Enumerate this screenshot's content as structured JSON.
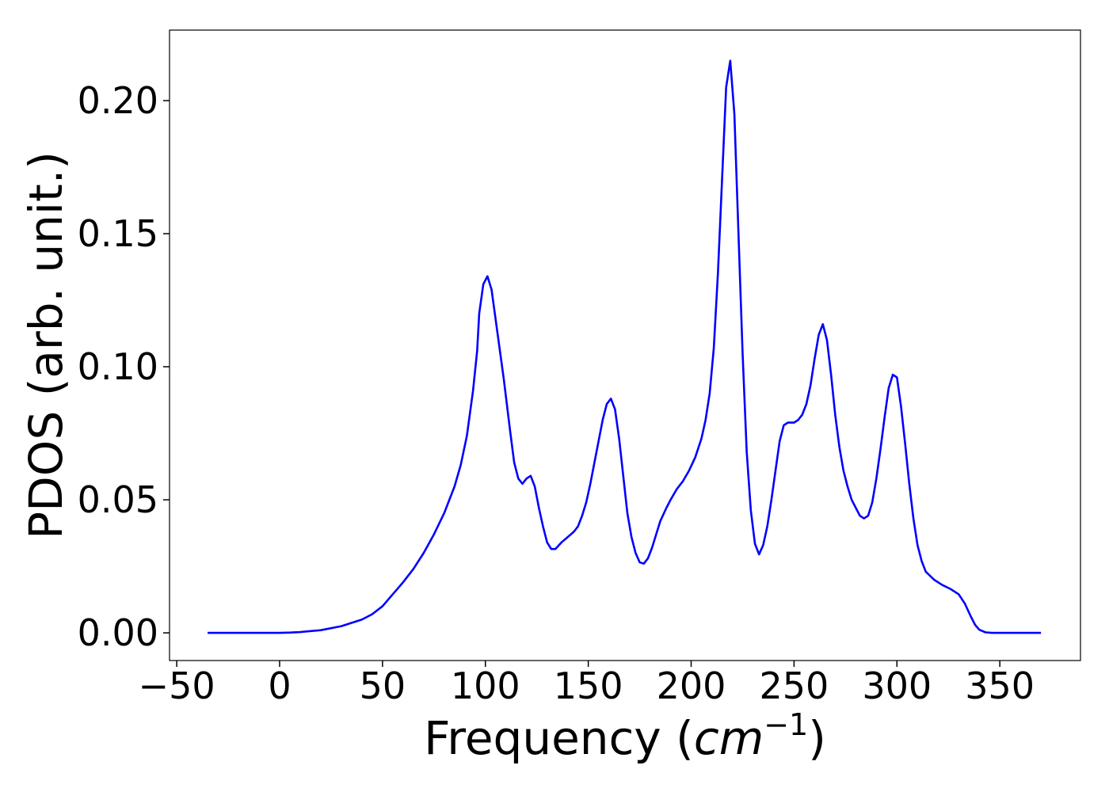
{
  "chart_data": {
    "type": "line",
    "xlabel": [
      "Frequency (",
      "cm",
      "−1",
      ")"
    ],
    "ylabel": "PDOS (arb. unit.)",
    "xlim": [
      -53.5,
      389.2
    ],
    "ylim": [
      -0.0104,
      0.2265
    ],
    "xticks": [
      {
        "value": -50,
        "label": "−50"
      },
      0,
      50,
      100,
      150,
      200,
      250,
      300,
      350
    ],
    "yticks": [
      {
        "value": 0,
        "label": "0.00"
      },
      {
        "value": 0.05,
        "label": "0.05"
      },
      {
        "value": 0.1,
        "label": "0.10"
      },
      {
        "value": 0.15,
        "label": "0.15"
      },
      {
        "value": 0.2,
        "label": "0.20"
      }
    ],
    "grid": false,
    "series": [
      {
        "color": "#0000ff",
        "x": [
          -35,
          0,
          5,
          10,
          20,
          30,
          40,
          45,
          50,
          55,
          60,
          65,
          70,
          75,
          80,
          85,
          88,
          91,
          94,
          96,
          97,
          99,
          101,
          103,
          106,
          109,
          112,
          114,
          116,
          118,
          120,
          122,
          124,
          126,
          128,
          130,
          132,
          134,
          137,
          140,
          143,
          145,
          147,
          149,
          151,
          153,
          155,
          157,
          159,
          161,
          163,
          165,
          167,
          169,
          171,
          173,
          175,
          177,
          179,
          181,
          183,
          185,
          188,
          190,
          193,
          196,
          199,
          202,
          205,
          207,
          209,
          211,
          213,
          215,
          217,
          219,
          221,
          223,
          225,
          227,
          229,
          231,
          233,
          235,
          237,
          239,
          241,
          243,
          245,
          247,
          250,
          252,
          254,
          256,
          258,
          260,
          262,
          264,
          266,
          268,
          270,
          272,
          274,
          276,
          278,
          280,
          282,
          284,
          286,
          288,
          290,
          292,
          294,
          296,
          298,
          300,
          302,
          304,
          306,
          308,
          310,
          312,
          314,
          318,
          322,
          326,
          330,
          333,
          336,
          338,
          340,
          343,
          346,
          370
        ],
        "values": [
          0,
          0,
          0.0001,
          0.0003,
          0.001,
          0.0025,
          0.005,
          0.007,
          0.01,
          0.0145,
          0.019,
          0.024,
          0.03,
          0.037,
          0.045,
          0.055,
          0.063,
          0.074,
          0.091,
          0.106,
          0.12,
          0.131,
          0.134,
          0.129,
          0.112,
          0.095,
          0.076,
          0.064,
          0.058,
          0.056,
          0.058,
          0.059,
          0.055,
          0.047,
          0.04,
          0.034,
          0.0315,
          0.0315,
          0.034,
          0.036,
          0.038,
          0.04,
          0.044,
          0.049,
          0.056,
          0.064,
          0.072,
          0.08,
          0.086,
          0.088,
          0.084,
          0.073,
          0.059,
          0.045,
          0.036,
          0.03,
          0.0265,
          0.026,
          0.028,
          0.032,
          0.037,
          0.042,
          0.047,
          0.05,
          0.054,
          0.057,
          0.061,
          0.066,
          0.073,
          0.08,
          0.09,
          0.107,
          0.135,
          0.17,
          0.205,
          0.215,
          0.195,
          0.15,
          0.105,
          0.068,
          0.046,
          0.0335,
          0.0295,
          0.033,
          0.04,
          0.05,
          0.061,
          0.072,
          0.078,
          0.079,
          0.079,
          0.08,
          0.082,
          0.086,
          0.093,
          0.103,
          0.112,
          0.116,
          0.11,
          0.097,
          0.082,
          0.07,
          0.061,
          0.055,
          0.05,
          0.047,
          0.044,
          0.043,
          0.044,
          0.049,
          0.058,
          0.069,
          0.081,
          0.092,
          0.097,
          0.096,
          0.085,
          0.071,
          0.056,
          0.043,
          0.033,
          0.027,
          0.023,
          0.02,
          0.018,
          0.0165,
          0.0145,
          0.011,
          0.006,
          0.003,
          0.0012,
          0.0002,
          0,
          0
        ]
      }
    ]
  }
}
